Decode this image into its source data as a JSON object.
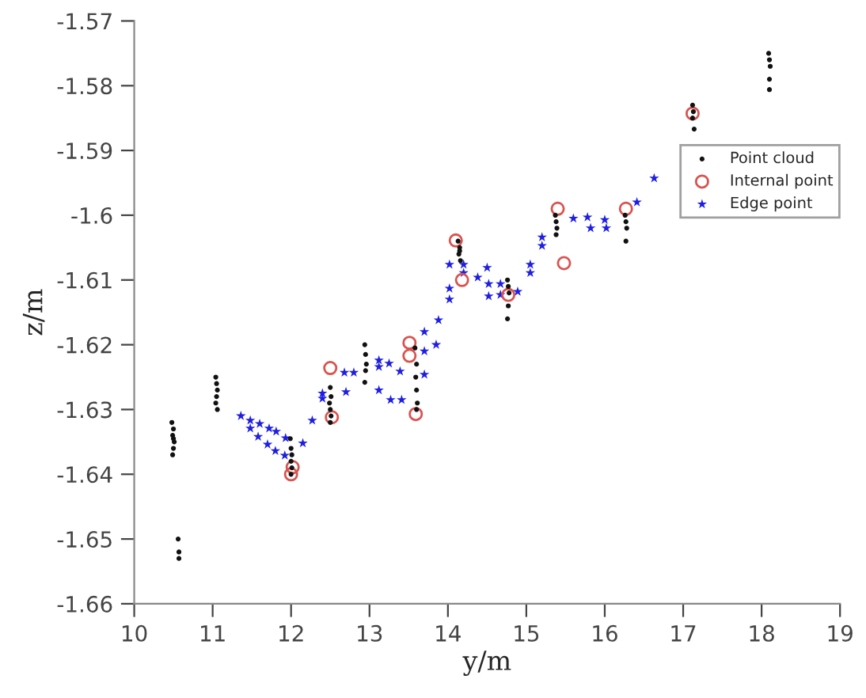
{
  "chart_data": {
    "type": "scatter",
    "xlabel": "y/m",
    "ylabel": "z/m",
    "xlim": [
      10,
      19
    ],
    "ylim": [
      -1.66,
      -1.57
    ],
    "xticks": [
      10,
      11,
      12,
      13,
      14,
      15,
      16,
      17,
      18,
      19
    ],
    "yticks": [
      -1.66,
      -1.65,
      -1.64,
      -1.63,
      -1.62,
      -1.61,
      -1.6,
      -1.59,
      -1.58,
      -1.57
    ],
    "grid": false,
    "legend": "top right",
    "series": [
      {
        "name": "Point cloud",
        "color": "#111111",
        "marker": "circle",
        "x": [
          10.48,
          10.5,
          10.49,
          10.51,
          10.5,
          10.49,
          10.5,
          10.56,
          10.57,
          10.57,
          11.04,
          11.05,
          11.06,
          11.05,
          11.04,
          11.06,
          11.99,
          12.0,
          12.01,
          12.0,
          12.01,
          12.0,
          12.5,
          12.51,
          12.49,
          12.5,
          12.51,
          12.5,
          12.94,
          12.95,
          12.96,
          12.95,
          12.94,
          13.58,
          13.6,
          13.59,
          13.6,
          13.61,
          13.6,
          14.13,
          14.15,
          14.14,
          14.16,
          14.15,
          14.76,
          14.77,
          14.78,
          14.77,
          14.76,
          15.37,
          15.38,
          15.39,
          15.38,
          16.26,
          16.27,
          16.28,
          16.27,
          17.12,
          17.13,
          17.12,
          17.14,
          18.09,
          18.1,
          18.11,
          18.1,
          18.1
        ],
        "values": [
          -1.632,
          -1.633,
          -1.634,
          -1.635,
          -1.636,
          -1.637,
          -1.6345,
          -1.65,
          -1.652,
          -1.653,
          -1.625,
          -1.626,
          -1.627,
          -1.628,
          -1.629,
          -1.63,
          -1.6345,
          -1.636,
          -1.637,
          -1.638,
          -1.639,
          -1.64,
          -1.6266,
          -1.628,
          -1.629,
          -1.63,
          -1.631,
          -1.632,
          -1.62,
          -1.6215,
          -1.623,
          -1.624,
          -1.6258,
          -1.6205,
          -1.623,
          -1.625,
          -1.627,
          -1.629,
          -1.63,
          -1.604,
          -1.605,
          -1.606,
          -1.607,
          -1.6055,
          -1.61,
          -1.611,
          -1.612,
          -1.614,
          -1.616,
          -1.6,
          -1.601,
          -1.602,
          -1.603,
          -1.6,
          -1.601,
          -1.602,
          -1.604,
          -1.583,
          -1.584,
          -1.585,
          -1.5867,
          -1.575,
          -1.576,
          -1.577,
          -1.579,
          -1.5806
        ]
      },
      {
        "name": "Internal point",
        "color": "#d9534f",
        "marker": "circle",
        "x": [
          12.0,
          12.02,
          12.5,
          12.52,
          13.51,
          13.51,
          13.59,
          14.1,
          14.18,
          14.77,
          15.4,
          15.48,
          16.27,
          17.12
        ],
        "values": [
          -1.64,
          -1.6389,
          -1.6236,
          -1.6312,
          -1.6197,
          -1.6217,
          -1.6307,
          -1.6039,
          -1.61,
          -1.6123,
          -1.599,
          -1.6074,
          -1.599,
          -1.5843
        ]
      },
      {
        "name": "Edge point",
        "color": "#1f1fe0",
        "marker": "star",
        "x": [
          11.36,
          11.48,
          11.6,
          11.72,
          11.81,
          11.93,
          11.48,
          11.58,
          11.7,
          11.8,
          11.92,
          12.15,
          12.27,
          12.4,
          12.4,
          12.7,
          12.68,
          12.8,
          13.12,
          13.12,
          13.25,
          13.12,
          13.27,
          13.41,
          13.39,
          13.7,
          13.7,
          13.7,
          13.88,
          13.85,
          14.02,
          14.02,
          14.02,
          14.2,
          14.2,
          14.38,
          14.5,
          14.52,
          14.52,
          14.67,
          14.67,
          14.89,
          15.05,
          15.05,
          15.2,
          15.2,
          15.6,
          15.78,
          15.82,
          16.0,
          16.02,
          16.41,
          16.63
        ],
        "values": [
          -1.631,
          -1.6317,
          -1.6322,
          -1.6329,
          -1.6334,
          -1.6344,
          -1.6329,
          -1.6342,
          -1.6354,
          -1.6364,
          -1.6371,
          -1.6352,
          -1.6317,
          -1.6275,
          -1.6283,
          -1.6273,
          -1.6243,
          -1.6243,
          -1.6224,
          -1.6234,
          -1.6229,
          -1.627,
          -1.6285,
          -1.6285,
          -1.6241,
          -1.618,
          -1.621,
          -1.6246,
          -1.6162,
          -1.62,
          -1.6076,
          -1.6113,
          -1.613,
          -1.6076,
          -1.6089,
          -1.6096,
          -1.6081,
          -1.6106,
          -1.6125,
          -1.6106,
          -1.6123,
          -1.6118,
          -1.6076,
          -1.6089,
          -1.6034,
          -1.6047,
          -1.6005,
          -1.6003,
          -1.602,
          -1.6007,
          -1.602,
          -1.598,
          -1.5943
        ]
      }
    ]
  }
}
